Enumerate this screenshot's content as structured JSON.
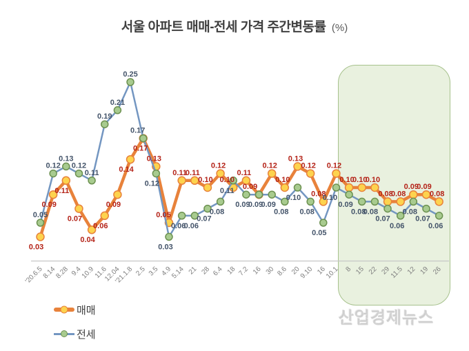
{
  "title": {
    "text": "서울 아파트 매매-전세 가격 주간변동률",
    "suffix": "(%)"
  },
  "legend": [
    {
      "label": "매매"
    },
    {
      "label": "전세"
    }
  ],
  "watermark": "산업경제뉴스",
  "colors": {
    "title": "#404040",
    "sale_line": "#E8823B",
    "sale_marker": "#FDD34E",
    "sale_label": "#B42318",
    "jeonse_line": "#7396C1",
    "jeonse_marker": "#A8CB8F",
    "jeonse_marker_border": "#6C9150",
    "jeonse_label": "#44546A",
    "axis": "#C6C6C6",
    "tick": "#7F7F7F",
    "highlight_fill": "#E9F1DF",
    "highlight_border": "#A6C18C"
  },
  "chart_data": {
    "type": "line",
    "title": "서울 아파트 매매-전세 가격 주간변동률 (%)",
    "categories": [
      "'20.6.5",
      "8.14",
      "8.28",
      "9.4",
      "10.9",
      "11.6",
      "12.04",
      "'21.1.8",
      "2.5",
      "3.5",
      "4.9",
      "5.14",
      "21",
      "28",
      "6.4",
      "18",
      "7.2",
      "16",
      "30",
      "8.6",
      "20",
      "9.10",
      "16",
      "10.1",
      "8",
      "15",
      "22",
      "29",
      "11.5",
      "12",
      "19",
      "26"
    ],
    "series": [
      {
        "name": "매매",
        "values": [
          0.03,
          0.09,
          0.11,
          0.07,
          0.04,
          0.06,
          0.09,
          0.14,
          0.17,
          0.13,
          0.05,
          0.11,
          0.11,
          0.1,
          0.12,
          0.1,
          0.11,
          0.09,
          0.12,
          0.1,
          0.13,
          0.12,
          0.08,
          0.12,
          0.1,
          0.1,
          0.1,
          0.08,
          0.08,
          0.09,
          0.09,
          0.08
        ]
      },
      {
        "name": "전세",
        "values": [
          0.05,
          0.12,
          0.13,
          0.12,
          0.11,
          0.19,
          0.21,
          0.25,
          0.17,
          0.12,
          0.03,
          0.06,
          0.06,
          0.07,
          0.08,
          0.11,
          0.09,
          0.09,
          0.09,
          0.08,
          0.1,
          0.08,
          0.05,
          0.1,
          0.09,
          0.08,
          0.08,
          0.07,
          0.06,
          0.08,
          0.07,
          0.06
        ]
      }
    ],
    "ylim": [
      0,
      0.27
    ],
    "grid": false,
    "data_labels": true,
    "label_format": "0.00",
    "legend_position": "bottom-left",
    "highlight_region": {
      "start_category": "8",
      "end_category": "26",
      "start_index": 24,
      "end_index": 31
    }
  }
}
